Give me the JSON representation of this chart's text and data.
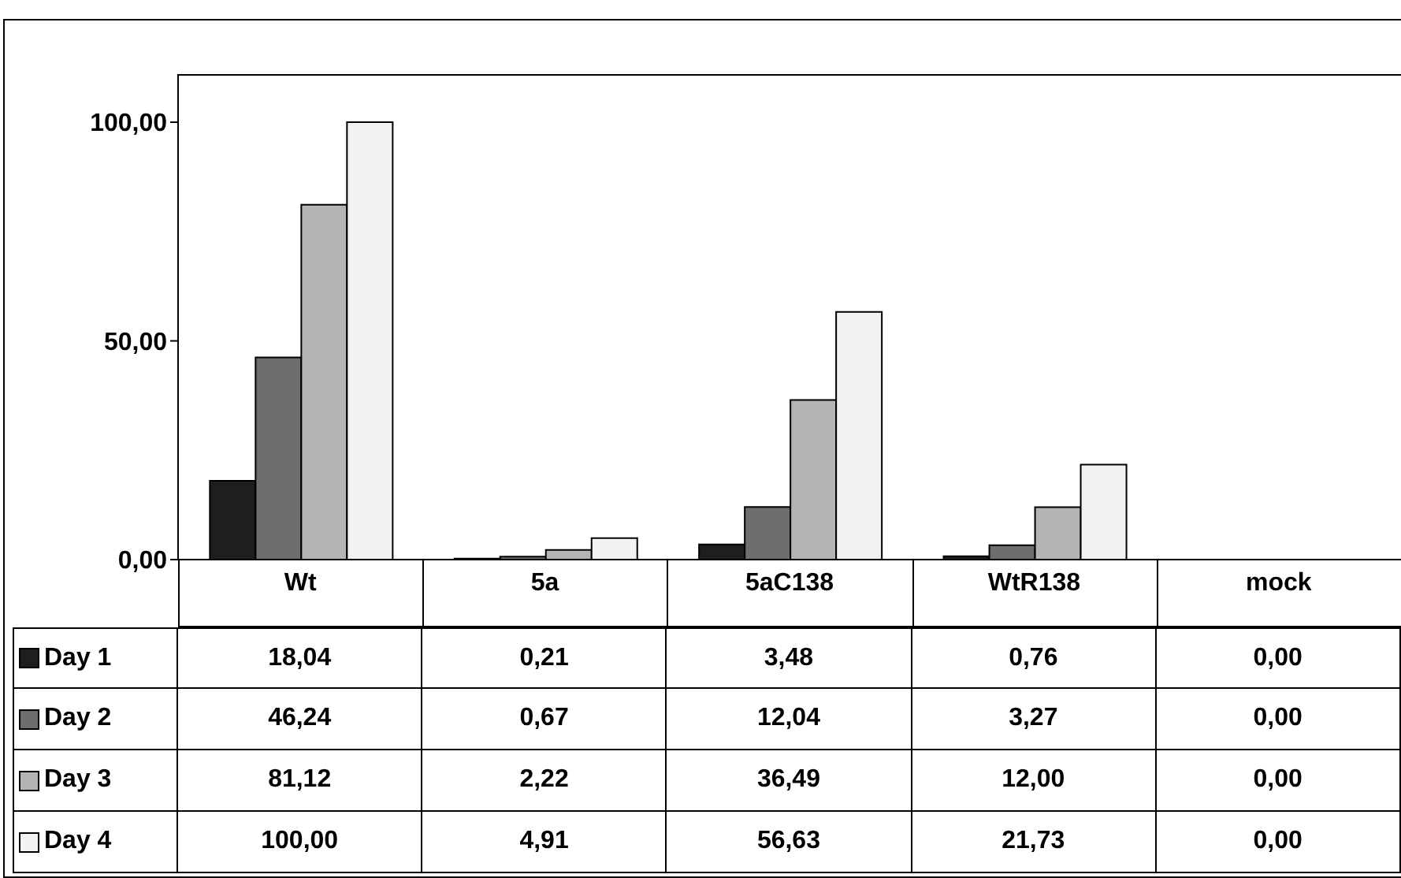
{
  "chart_data": {
    "type": "bar",
    "categories": [
      "Wt",
      "5a",
      "5aC138",
      "WtR138",
      "mock"
    ],
    "series": [
      {
        "name": "Day 1",
        "color": "#1e1e1e",
        "values": [
          18.04,
          0.21,
          3.48,
          0.76,
          0.0
        ],
        "value_labels": [
          "18,04",
          "0,21",
          "3,48",
          "0,76",
          "0,00"
        ]
      },
      {
        "name": "Day 2",
        "color": "#6e6e6e",
        "values": [
          46.24,
          0.67,
          12.04,
          3.27,
          0.0
        ],
        "value_labels": [
          "46,24",
          "0,67",
          "12,04",
          "3,27",
          "0,00"
        ]
      },
      {
        "name": "Day 3",
        "color": "#b4b4b4",
        "values": [
          81.12,
          2.22,
          36.49,
          12.0,
          0.0
        ],
        "value_labels": [
          "81,12",
          "2,22",
          "36,49",
          "12,00",
          "0,00"
        ]
      },
      {
        "name": "Day 4",
        "color": "#f2f2f2",
        "values": [
          100.0,
          4.91,
          56.63,
          21.73,
          0.0
        ],
        "value_labels": [
          "100,00",
          "4,91",
          "56,63",
          "21,73",
          "0,00"
        ]
      }
    ],
    "ylim": [
      0,
      111
    ],
    "yticks": [
      {
        "value": 0,
        "label": "0,00"
      },
      {
        "value": 50,
        "label": "50,00"
      },
      {
        "value": 100,
        "label": "100,00"
      }
    ],
    "grid": false,
    "legend": "bottom"
  }
}
